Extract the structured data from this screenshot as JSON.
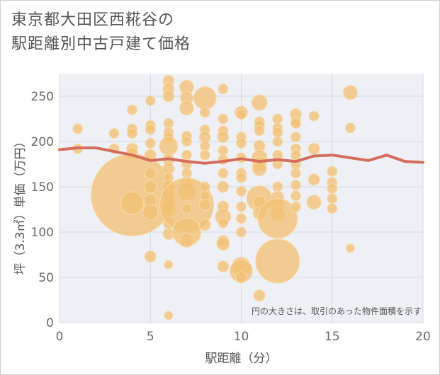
{
  "title_lines": [
    "東京都大田区西糀谷の",
    "駅距離別中古戸建て価格"
  ],
  "note": "円の大きさは、取引のあった物件面積を示す",
  "colors": {
    "bubble": "#f2c074",
    "bubble_edge": "#f6dcae",
    "line": "#d46d5b",
    "plot_bg": "#eef0f5",
    "grid": "#d2d9e4",
    "text": "#555555",
    "axis_text": "#6a6a6a"
  },
  "chart_data": {
    "type": "scatter",
    "xlabel": "駅距離（分）",
    "ylabel": "坪（3.3㎡）単価（万円）",
    "xlim": [
      0,
      20
    ],
    "ylim": [
      0,
      275
    ],
    "xticks": [
      0,
      5,
      10,
      15,
      20
    ],
    "yticks": [
      0,
      50,
      100,
      150,
      200,
      250
    ],
    "grid": true,
    "bubbles": [
      {
        "x": 1,
        "y": 214,
        "r": 7
      },
      {
        "x": 1,
        "y": 192,
        "r": 7
      },
      {
        "x": 3,
        "y": 209,
        "r": 7
      },
      {
        "x": 3,
        "y": 192,
        "r": 7
      },
      {
        "x": 4,
        "y": 235,
        "r": 7
      },
      {
        "x": 4,
        "y": 214,
        "r": 7
      },
      {
        "x": 4,
        "y": 209,
        "r": 7
      },
      {
        "x": 4,
        "y": 192,
        "r": 8
      },
      {
        "x": 4,
        "y": 187,
        "r": 8
      },
      {
        "x": 4,
        "y": 141,
        "r": 58
      },
      {
        "x": 4,
        "y": 132,
        "r": 16
      },
      {
        "x": 5,
        "y": 245,
        "r": 7
      },
      {
        "x": 5,
        "y": 218,
        "r": 7
      },
      {
        "x": 5,
        "y": 213,
        "r": 7
      },
      {
        "x": 5,
        "y": 198,
        "r": 7
      },
      {
        "x": 5,
        "y": 185,
        "r": 8
      },
      {
        "x": 5,
        "y": 165,
        "r": 8
      },
      {
        "x": 5,
        "y": 150,
        "r": 9
      },
      {
        "x": 5,
        "y": 135,
        "r": 9
      },
      {
        "x": 5,
        "y": 122,
        "r": 11
      },
      {
        "x": 5,
        "y": 73,
        "r": 8
      },
      {
        "x": 6,
        "y": 267,
        "r": 8
      },
      {
        "x": 6,
        "y": 258,
        "r": 8
      },
      {
        "x": 6,
        "y": 250,
        "r": 8
      },
      {
        "x": 6,
        "y": 220,
        "r": 7
      },
      {
        "x": 6,
        "y": 210,
        "r": 7
      },
      {
        "x": 6,
        "y": 205,
        "r": 7
      },
      {
        "x": 6,
        "y": 195,
        "r": 13
      },
      {
        "x": 6,
        "y": 180,
        "r": 8
      },
      {
        "x": 6,
        "y": 170,
        "r": 8
      },
      {
        "x": 6,
        "y": 160,
        "r": 7
      },
      {
        "x": 6,
        "y": 150,
        "r": 9
      },
      {
        "x": 6,
        "y": 140,
        "r": 9
      },
      {
        "x": 6,
        "y": 132,
        "r": 9
      },
      {
        "x": 6,
        "y": 125,
        "r": 10
      },
      {
        "x": 6,
        "y": 110,
        "r": 8
      },
      {
        "x": 6,
        "y": 98,
        "r": 8
      },
      {
        "x": 6,
        "y": 64,
        "r": 6
      },
      {
        "x": 6,
        "y": 8,
        "r": 6
      },
      {
        "x": 7,
        "y": 260,
        "r": 10
      },
      {
        "x": 7,
        "y": 248,
        "r": 9
      },
      {
        "x": 7,
        "y": 237,
        "r": 10
      },
      {
        "x": 7,
        "y": 206,
        "r": 7
      },
      {
        "x": 7,
        "y": 200,
        "r": 7
      },
      {
        "x": 7,
        "y": 185,
        "r": 7
      },
      {
        "x": 7,
        "y": 175,
        "r": 7
      },
      {
        "x": 7,
        "y": 165,
        "r": 7
      },
      {
        "x": 7,
        "y": 155,
        "r": 8
      },
      {
        "x": 7,
        "y": 145,
        "r": 12
      },
      {
        "x": 7,
        "y": 130,
        "r": 38
      },
      {
        "x": 7,
        "y": 126,
        "r": 7
      },
      {
        "x": 7,
        "y": 100,
        "r": 20
      },
      {
        "x": 7,
        "y": 91,
        "r": 10
      },
      {
        "x": 8,
        "y": 248,
        "r": 16
      },
      {
        "x": 8,
        "y": 232,
        "r": 7
      },
      {
        "x": 8,
        "y": 213,
        "r": 7
      },
      {
        "x": 8,
        "y": 205,
        "r": 8
      },
      {
        "x": 8,
        "y": 195,
        "r": 7
      },
      {
        "x": 8,
        "y": 185,
        "r": 7
      },
      {
        "x": 8,
        "y": 150,
        "r": 7
      },
      {
        "x": 8,
        "y": 140,
        "r": 7
      },
      {
        "x": 8,
        "y": 130,
        "r": 8
      },
      {
        "x": 8,
        "y": 108,
        "r": 8
      },
      {
        "x": 9,
        "y": 258,
        "r": 7
      },
      {
        "x": 9,
        "y": 225,
        "r": 7
      },
      {
        "x": 9,
        "y": 212,
        "r": 7
      },
      {
        "x": 9,
        "y": 205,
        "r": 8
      },
      {
        "x": 9,
        "y": 190,
        "r": 7
      },
      {
        "x": 9,
        "y": 180,
        "r": 7
      },
      {
        "x": 9,
        "y": 165,
        "r": 7
      },
      {
        "x": 9,
        "y": 150,
        "r": 8
      },
      {
        "x": 9,
        "y": 128,
        "r": 8
      },
      {
        "x": 9,
        "y": 117,
        "r": 11
      },
      {
        "x": 9,
        "y": 110,
        "r": 7
      },
      {
        "x": 9,
        "y": 90,
        "r": 8
      },
      {
        "x": 9,
        "y": 87,
        "r": 9
      },
      {
        "x": 9,
        "y": 62,
        "r": 8
      },
      {
        "x": 10,
        "y": 232,
        "r": 9
      },
      {
        "x": 10,
        "y": 230,
        "r": 7
      },
      {
        "x": 10,
        "y": 205,
        "r": 7
      },
      {
        "x": 10,
        "y": 198,
        "r": 7
      },
      {
        "x": 10,
        "y": 182,
        "r": 7
      },
      {
        "x": 10,
        "y": 165,
        "r": 7
      },
      {
        "x": 10,
        "y": 160,
        "r": 7
      },
      {
        "x": 10,
        "y": 145,
        "r": 7
      },
      {
        "x": 10,
        "y": 128,
        "r": 7
      },
      {
        "x": 10,
        "y": 115,
        "r": 7
      },
      {
        "x": 10,
        "y": 100,
        "r": 7
      },
      {
        "x": 10,
        "y": 62,
        "r": 13
      },
      {
        "x": 10,
        "y": 57,
        "r": 16
      },
      {
        "x": 10,
        "y": 50,
        "r": 8
      },
      {
        "x": 11,
        "y": 243,
        "r": 11
      },
      {
        "x": 11,
        "y": 222,
        "r": 7
      },
      {
        "x": 11,
        "y": 218,
        "r": 7
      },
      {
        "x": 11,
        "y": 212,
        "r": 7
      },
      {
        "x": 11,
        "y": 195,
        "r": 8
      },
      {
        "x": 11,
        "y": 182,
        "r": 11
      },
      {
        "x": 11,
        "y": 175,
        "r": 10
      },
      {
        "x": 11,
        "y": 170,
        "r": 10
      },
      {
        "x": 11,
        "y": 137,
        "r": 18
      },
      {
        "x": 11,
        "y": 133,
        "r": 9
      },
      {
        "x": 11,
        "y": 121,
        "r": 9
      },
      {
        "x": 11,
        "y": 30,
        "r": 8
      },
      {
        "x": 12,
        "y": 225,
        "r": 7
      },
      {
        "x": 12,
        "y": 215,
        "r": 7
      },
      {
        "x": 12,
        "y": 210,
        "r": 7
      },
      {
        "x": 12,
        "y": 200,
        "r": 7
      },
      {
        "x": 12,
        "y": 185,
        "r": 7
      },
      {
        "x": 12,
        "y": 175,
        "r": 7
      },
      {
        "x": 12,
        "y": 150,
        "r": 7
      },
      {
        "x": 12,
        "y": 138,
        "r": 9
      },
      {
        "x": 12,
        "y": 130,
        "r": 9
      },
      {
        "x": 12,
        "y": 120,
        "r": 10
      },
      {
        "x": 12,
        "y": 115,
        "r": 28
      },
      {
        "x": 12,
        "y": 68,
        "r": 31
      },
      {
        "x": 13,
        "y": 230,
        "r": 8
      },
      {
        "x": 13,
        "y": 222,
        "r": 7
      },
      {
        "x": 13,
        "y": 220,
        "r": 7
      },
      {
        "x": 13,
        "y": 205,
        "r": 7
      },
      {
        "x": 13,
        "y": 192,
        "r": 7
      },
      {
        "x": 13,
        "y": 185,
        "r": 7
      },
      {
        "x": 13,
        "y": 175,
        "r": 7
      },
      {
        "x": 13,
        "y": 165,
        "r": 7
      },
      {
        "x": 13,
        "y": 152,
        "r": 7
      },
      {
        "x": 13,
        "y": 140,
        "r": 7
      },
      {
        "x": 13,
        "y": 128,
        "r": 7
      },
      {
        "x": 14,
        "y": 228,
        "r": 7
      },
      {
        "x": 14,
        "y": 192,
        "r": 8
      },
      {
        "x": 14,
        "y": 158,
        "r": 8
      },
      {
        "x": 14,
        "y": 133,
        "r": 10
      },
      {
        "x": 15,
        "y": 167,
        "r": 7
      },
      {
        "x": 15,
        "y": 155,
        "r": 7
      },
      {
        "x": 15,
        "y": 148,
        "r": 7
      },
      {
        "x": 15,
        "y": 137,
        "r": 7
      },
      {
        "x": 15,
        "y": 126,
        "r": 7
      },
      {
        "x": 16,
        "y": 254,
        "r": 10
      },
      {
        "x": 16,
        "y": 215,
        "r": 7
      },
      {
        "x": 16,
        "y": 82,
        "r": 6
      }
    ],
    "series": [
      {
        "type": "line",
        "x": [
          0,
          1,
          2,
          3,
          4,
          5,
          6,
          7,
          8,
          9,
          10,
          11,
          12,
          13,
          14,
          15,
          16,
          17,
          18,
          19,
          20
        ],
        "y": [
          191,
          193,
          193,
          189,
          185,
          179,
          181,
          178,
          176,
          178,
          181,
          178,
          180,
          178,
          184,
          185,
          182,
          179,
          185,
          178,
          177
        ]
      }
    ]
  }
}
